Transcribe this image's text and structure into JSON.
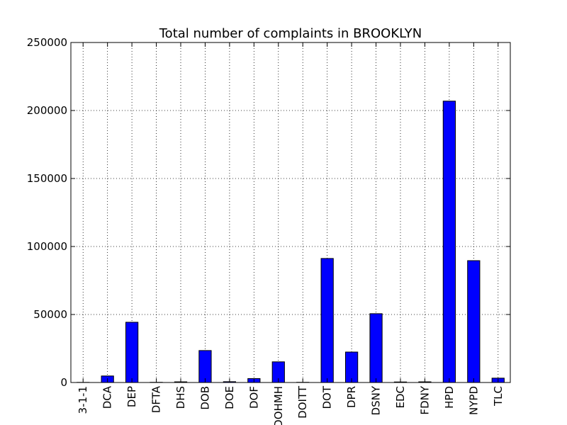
{
  "chart_data": {
    "type": "bar",
    "title": "Total number of complaints in BROOKLYN",
    "xlabel": "",
    "ylabel": "",
    "categories": [
      "3-1-1",
      "DCA",
      "DEP",
      "DFTA",
      "DHS",
      "DOB",
      "DOE",
      "DOF",
      "DOHMH",
      "DOITT",
      "DOT",
      "DPR",
      "DSNY",
      "EDC",
      "FDNY",
      "HPD",
      "NYPD",
      "TLC"
    ],
    "values": [
      100,
      4800,
      44300,
      150,
      500,
      23500,
      600,
      2900,
      15200,
      150,
      91200,
      22400,
      50600,
      400,
      500,
      206900,
      89600,
      3200
    ],
    "ylim": [
      0,
      250000
    ],
    "yticks": [
      0,
      50000,
      100000,
      150000,
      200000,
      250000
    ],
    "grid": true,
    "bar_color": "#0000ff"
  }
}
